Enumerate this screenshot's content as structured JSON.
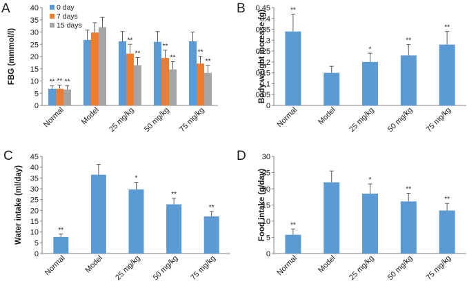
{
  "chart_data": [
    {
      "panel": "A",
      "type": "bar",
      "ylabel": "FBG  (mmmol/l)",
      "ylim": [
        0,
        40
      ],
      "yticks": [
        0,
        5,
        10,
        15,
        20,
        25,
        30,
        35,
        40
      ],
      "categories": [
        "Normal",
        "Model",
        "25 mg/kg",
        "50 mg/kg",
        "75 mg/kg"
      ],
      "legend_position": "top-left",
      "series": [
        {
          "name": "0 day",
          "color": "#5b9bd5",
          "values": [
            6.8,
            26.8,
            26.2,
            26.0,
            26.2
          ],
          "errors": [
            1.2,
            4.0,
            4.0,
            4.2,
            3.8
          ],
          "annotations": [
            "**",
            "",
            "",
            "",
            ""
          ]
        },
        {
          "name": "7 days",
          "color": "#ed7d31",
          "values": [
            6.8,
            29.8,
            21.2,
            19.4,
            17.1
          ],
          "errors": [
            1.5,
            4.0,
            3.8,
            3.2,
            3.0
          ],
          "annotations": [
            "**",
            "",
            "**",
            "**",
            "**"
          ]
        },
        {
          "name": "15 days",
          "color": "#a5a5a5",
          "values": [
            6.5,
            32.0,
            16.4,
            14.7,
            13.3
          ],
          "errors": [
            1.5,
            4.0,
            3.2,
            3.2,
            3.0
          ],
          "annotations": [
            "**",
            "",
            "**",
            "**",
            "**"
          ]
        }
      ]
    },
    {
      "panel": "B",
      "type": "bar",
      "ylabel": "Body weight increase (g)",
      "ylim": [
        0,
        0.45
      ],
      "yticks": [
        0,
        0.05,
        0.1,
        0.15,
        0.2,
        0.25,
        0.3,
        0.35,
        0.4,
        0.45
      ],
      "categories": [
        "Normal",
        "Model",
        "25 mg/kg",
        "50 mg/kg",
        "75 mg/kg"
      ],
      "series": [
        {
          "color": "#5b9bd5",
          "values": [
            0.34,
            0.15,
            0.2,
            0.23,
            0.28
          ],
          "errors": [
            0.08,
            0.03,
            0.04,
            0.05,
            0.06
          ],
          "annotations": [
            "**",
            "",
            "*",
            "**",
            "**"
          ]
        }
      ]
    },
    {
      "panel": "C",
      "type": "bar",
      "ylabel": "Water intake (ml/day)",
      "ylim": [
        0,
        45
      ],
      "yticks": [
        0,
        5,
        10,
        15,
        20,
        25,
        30,
        35,
        40,
        45
      ],
      "categories": [
        "Normal",
        "Model",
        "25 mg/kg",
        "50 mg/kg",
        "75 mg/kg"
      ],
      "series": [
        {
          "color": "#5b9bd5",
          "values": [
            7.7,
            36.5,
            29.7,
            22.8,
            17.2
          ],
          "errors": [
            1.3,
            4.8,
            3.3,
            2.8,
            2.3
          ],
          "annotations": [
            "**",
            "",
            "*",
            "**",
            "**"
          ]
        }
      ]
    },
    {
      "panel": "D",
      "type": "bar",
      "ylabel": "Food intake (g/day)",
      "ylim": [
        0,
        30
      ],
      "yticks": [
        0,
        5,
        10,
        15,
        20,
        25,
        30
      ],
      "categories": [
        "Normal",
        "Model",
        "25 mg/kg",
        "50 mg/kg",
        "75 mg/kg"
      ],
      "series": [
        {
          "color": "#5b9bd5",
          "values": [
            5.8,
            22.0,
            18.5,
            16.1,
            13.3
          ],
          "errors": [
            1.8,
            3.5,
            3.0,
            2.5,
            2.2
          ],
          "annotations": [
            "**",
            "",
            "*",
            "**",
            "**"
          ]
        }
      ]
    }
  ]
}
